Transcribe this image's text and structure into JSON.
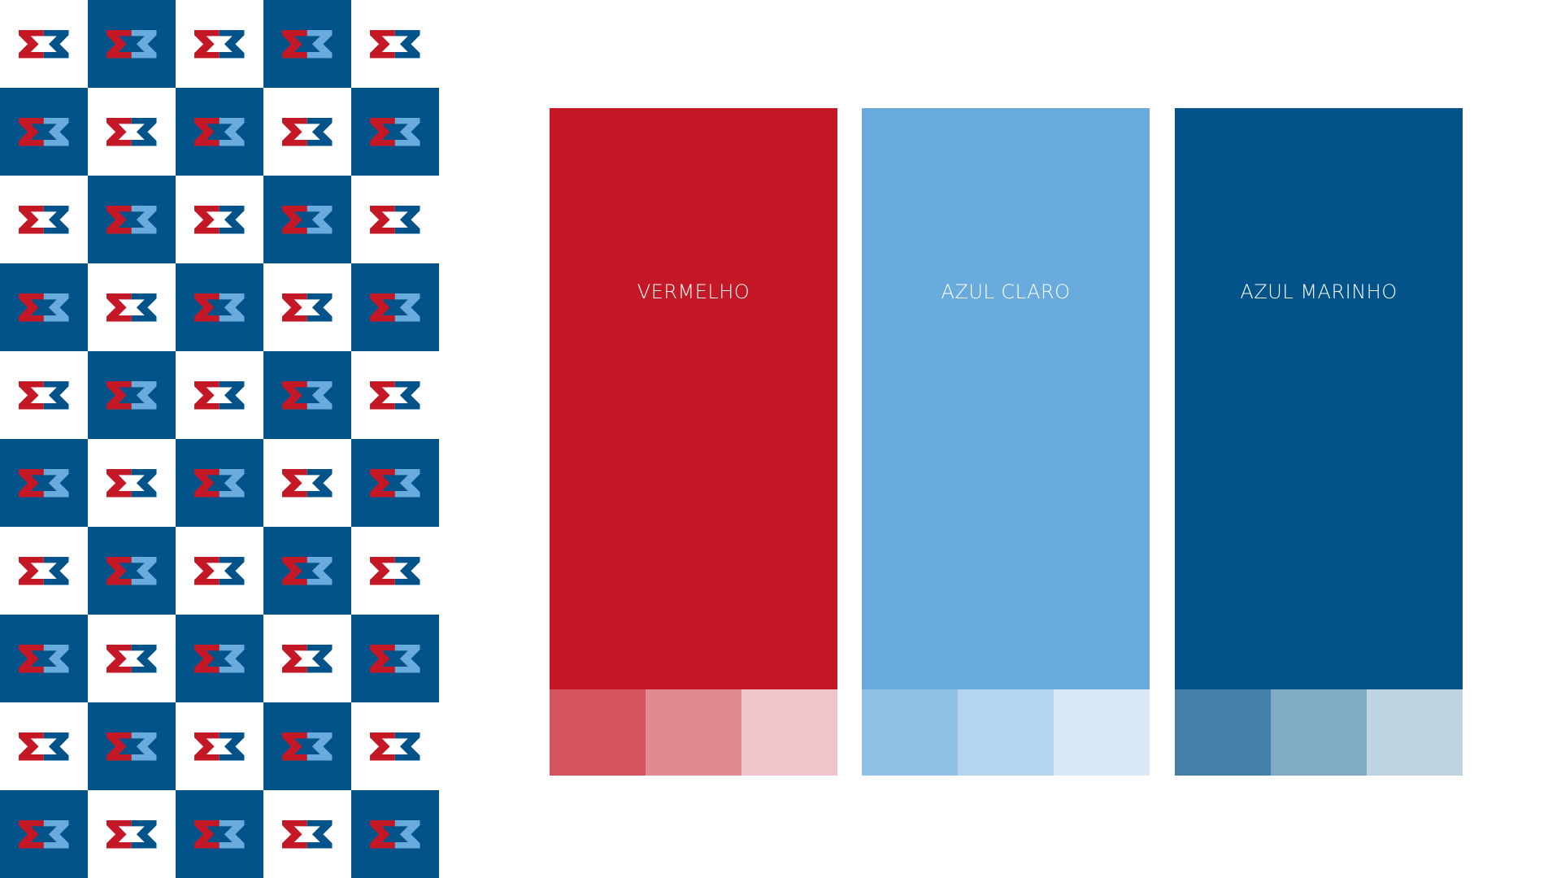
{
  "palette": [
    {
      "label": "VERMELHO"
    },
    {
      "label": "AZUL CLARO"
    },
    {
      "label": "AZUL MARINHO"
    }
  ]
}
